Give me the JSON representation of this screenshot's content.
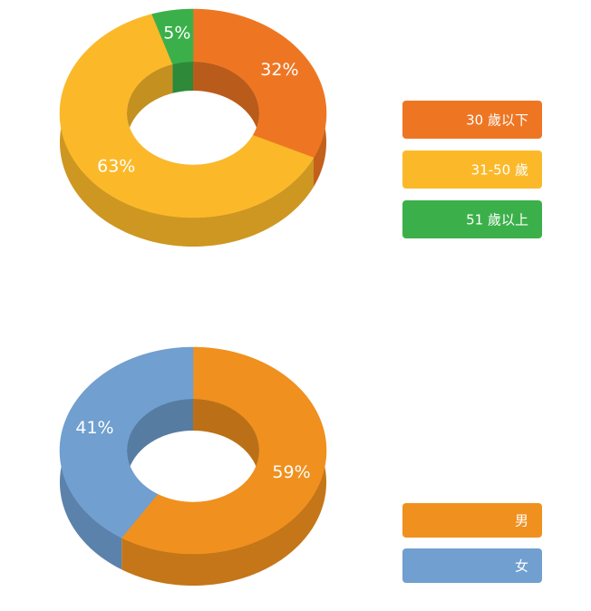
{
  "chart_data": [
    {
      "type": "pie",
      "donut": true,
      "categories": [
        "30 歲以下",
        "31-50 歲",
        "51 歲以上"
      ],
      "values": [
        32,
        63,
        5
      ],
      "value_labels": [
        "32%",
        "63%",
        "5%"
      ],
      "colors": [
        "#ee7623",
        "#fbb92a",
        "#3bb04a"
      ],
      "legend": "right"
    },
    {
      "type": "pie",
      "donut": true,
      "categories": [
        "男",
        "女"
      ],
      "values": [
        59,
        41
      ],
      "value_labels": [
        "59%",
        "41%"
      ],
      "colors": [
        "#f0901e",
        "#709fd0"
      ],
      "legend": "right"
    }
  ]
}
